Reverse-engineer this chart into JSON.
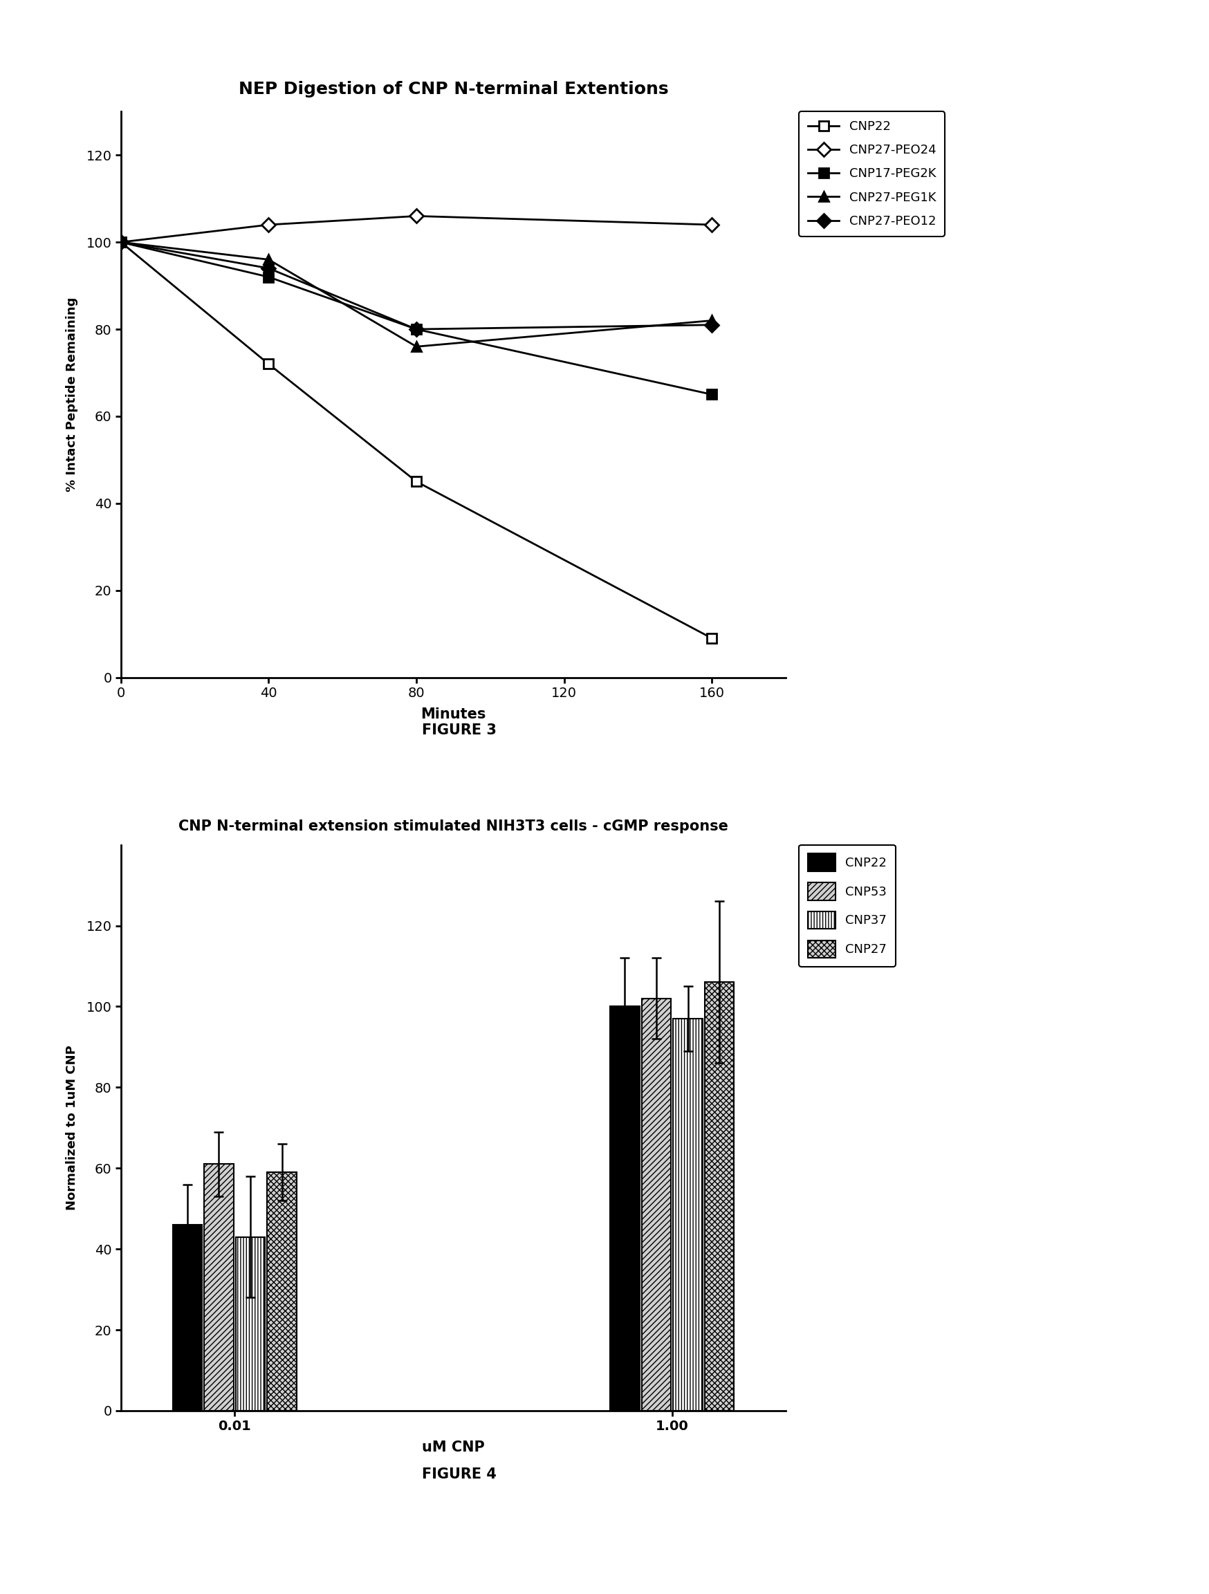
{
  "fig1": {
    "title": "NEP Digestion of CNP N-terminal Extentions",
    "xlabel": "Minutes",
    "ylabel": "% Intact Peptide Remaining",
    "xlim": [
      0,
      180
    ],
    "ylim": [
      0,
      130
    ],
    "xticks": [
      0,
      40,
      80,
      120,
      160
    ],
    "yticks": [
      0,
      20,
      40,
      60,
      80,
      100,
      120
    ],
    "series": [
      {
        "label": "CNP22",
        "x": [
          0,
          40,
          80,
          160
        ],
        "y": [
          100,
          72,
          45,
          9
        ],
        "marker": "s",
        "mfc": "white",
        "mec": "black",
        "linewidth": 2.0,
        "markersize": 10
      },
      {
        "label": "CNP27-PEO24",
        "x": [
          0,
          40,
          80,
          160
        ],
        "y": [
          100,
          104,
          106,
          104
        ],
        "marker": "D",
        "mfc": "white",
        "mec": "black",
        "linewidth": 2.0,
        "markersize": 10
      },
      {
        "label": "CNP17-PEG2K",
        "x": [
          0,
          40,
          80,
          160
        ],
        "y": [
          100,
          92,
          80,
          65
        ],
        "marker": "s",
        "mfc": "black",
        "mec": "black",
        "linewidth": 2.0,
        "markersize": 10
      },
      {
        "label": "CNP27-PEG1K",
        "x": [
          0,
          40,
          80,
          160
        ],
        "y": [
          100,
          96,
          76,
          82
        ],
        "marker": "^",
        "mfc": "black",
        "mec": "black",
        "linewidth": 2.0,
        "markersize": 10
      },
      {
        "label": "CNP27-PEO12",
        "x": [
          0,
          40,
          80,
          160
        ],
        "y": [
          100,
          94,
          80,
          81
        ],
        "marker": "D",
        "mfc": "black",
        "mec": "black",
        "linewidth": 2.0,
        "markersize": 10
      }
    ],
    "figure3_label": "FIGURE 3"
  },
  "fig2": {
    "title": "CNP N-terminal extension stimulated NIH3T3 cells - cGMP response",
    "xlabel": "uM CNP",
    "ylabel": "Normalized to 1uM CNP",
    "ylim": [
      0,
      140
    ],
    "yticks": [
      0,
      20,
      40,
      60,
      80,
      100,
      120
    ],
    "categories": [
      "0.01",
      "1.00"
    ],
    "group_centers": [
      1.0,
      3.5
    ],
    "bars": [
      {
        "label": "CNP22",
        "values": [
          46,
          100
        ],
        "errors": [
          10,
          12
        ],
        "hatch": "",
        "facecolor": "#000000",
        "edgecolor": "black"
      },
      {
        "label": "CNP53",
        "values": [
          61,
          102
        ],
        "errors": [
          8,
          10
        ],
        "hatch": "////",
        "facecolor": "#d0d0d0",
        "edgecolor": "black"
      },
      {
        "label": "CNP37",
        "values": [
          43,
          97
        ],
        "errors": [
          15,
          8
        ],
        "hatch": "||||",
        "facecolor": "white",
        "edgecolor": "black"
      },
      {
        "label": "CNP27",
        "values": [
          59,
          106
        ],
        "errors": [
          7,
          20
        ],
        "hatch": "xxxx",
        "facecolor": "#d0d0d0",
        "edgecolor": "black"
      }
    ],
    "figure4_label": "FIGURE 4"
  }
}
